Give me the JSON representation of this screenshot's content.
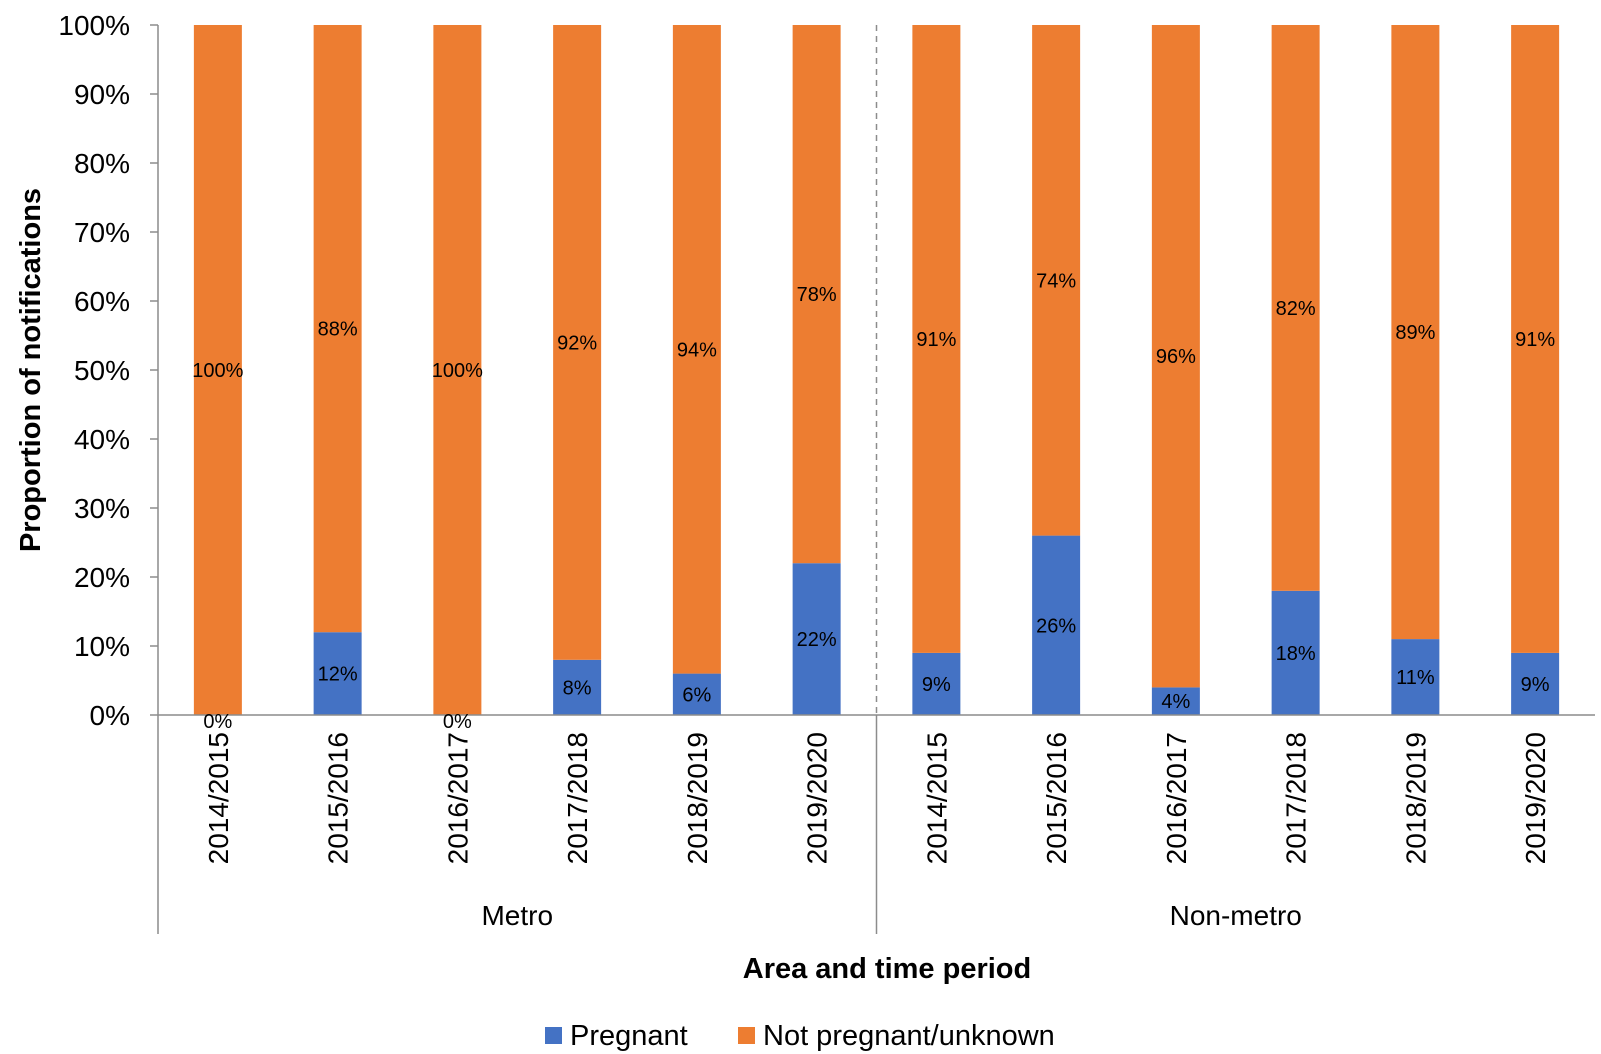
{
  "chart_data": {
    "type": "bar",
    "stacked": true,
    "percent_scale": true,
    "xlabel": "Area and time period",
    "ylabel": "Proportion of notifications",
    "ylim": [
      0,
      100
    ],
    "yticks": [
      "0%",
      "10%",
      "20%",
      "30%",
      "40%",
      "50%",
      "60%",
      "70%",
      "80%",
      "90%",
      "100%"
    ],
    "groups": [
      {
        "name": "Metro",
        "categories": [
          "2014/2015",
          "2015/2016",
          "2016/2017",
          "2017/2018",
          "2018/2019",
          "2019/2020"
        ]
      },
      {
        "name": "Non-metro",
        "categories": [
          "2014/2015",
          "2015/2016",
          "2016/2017",
          "2017/2018",
          "2018/2019",
          "2019/2020"
        ]
      }
    ],
    "series": [
      {
        "name": "Pregnant",
        "color": "#4472C4",
        "values": [
          0,
          12,
          0,
          8,
          6,
          22,
          9,
          26,
          4,
          18,
          11,
          9
        ],
        "labels": [
          "0%",
          "12%",
          "0%",
          "8%",
          "6%",
          "22%",
          "9%",
          "26%",
          "4%",
          "18%",
          "11%",
          "9%"
        ]
      },
      {
        "name": "Not pregnant/unknown",
        "color": "#ED7D31",
        "values": [
          100,
          88,
          100,
          92,
          94,
          78,
          91,
          74,
          96,
          82,
          89,
          91
        ],
        "labels": [
          "100%",
          "88%",
          "100%",
          "92%",
          "94%",
          "78%",
          "91%",
          "74%",
          "96%",
          "82%",
          "89%",
          "91%"
        ]
      }
    ],
    "grid": false,
    "group_separator": "dashed",
    "legend_position": "bottom"
  }
}
